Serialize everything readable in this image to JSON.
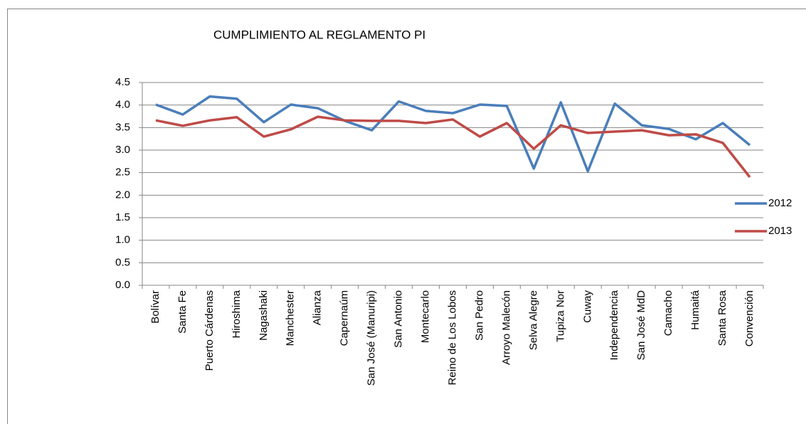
{
  "chart_data": {
    "type": "line",
    "title": "CUMPLIMIENTO AL REGLAMENTO PI",
    "categories": [
      "Bolívar",
      "Santa Fe",
      "Puerto Cárdenas",
      "Hiroshima",
      "Nagashaki",
      "Manchester",
      "Alianza",
      "Capernaúm",
      "San José (Manuripi)",
      "San Antonio",
      "Montecarlo",
      "Reino de Los Lobos",
      "San Pedro",
      "Arroyo Malecón",
      "Selva Alegre",
      "Tupiza Nor",
      "Cuway",
      "Independencia",
      "San José MdD",
      "Camacho",
      "Humaitá",
      "Santa Rosa",
      "Convención"
    ],
    "series": [
      {
        "name": "2012",
        "color": "#4a7ebb",
        "values": [
          4.01,
          3.79,
          4.19,
          4.14,
          3.62,
          4.01,
          3.93,
          3.65,
          3.44,
          4.08,
          3.87,
          3.82,
          4.01,
          3.98,
          2.59,
          4.06,
          2.53,
          4.03,
          3.55,
          3.47,
          3.24,
          3.6,
          3.11
        ]
      },
      {
        "name": "2013",
        "color": "#be4b48",
        "values": [
          3.66,
          3.54,
          3.66,
          3.73,
          3.3,
          3.46,
          3.74,
          3.66,
          3.65,
          3.65,
          3.6,
          3.68,
          3.3,
          3.6,
          3.03,
          3.55,
          3.38,
          3.41,
          3.44,
          3.33,
          3.35,
          3.16,
          2.4
        ]
      }
    ],
    "ylim": [
      0,
      4.5
    ],
    "yticks": [
      {
        "value": 0,
        "label": "0.0"
      },
      0.5,
      {
        "value": 1,
        "label": "1.0"
      },
      1.5,
      {
        "value": 2,
        "label": "2.0"
      },
      2.5,
      {
        "value": 3,
        "label": "3.0"
      },
      3.5,
      {
        "value": 4,
        "label": "4.0"
      },
      4.5
    ],
    "grid": true,
    "legend": "right"
  }
}
